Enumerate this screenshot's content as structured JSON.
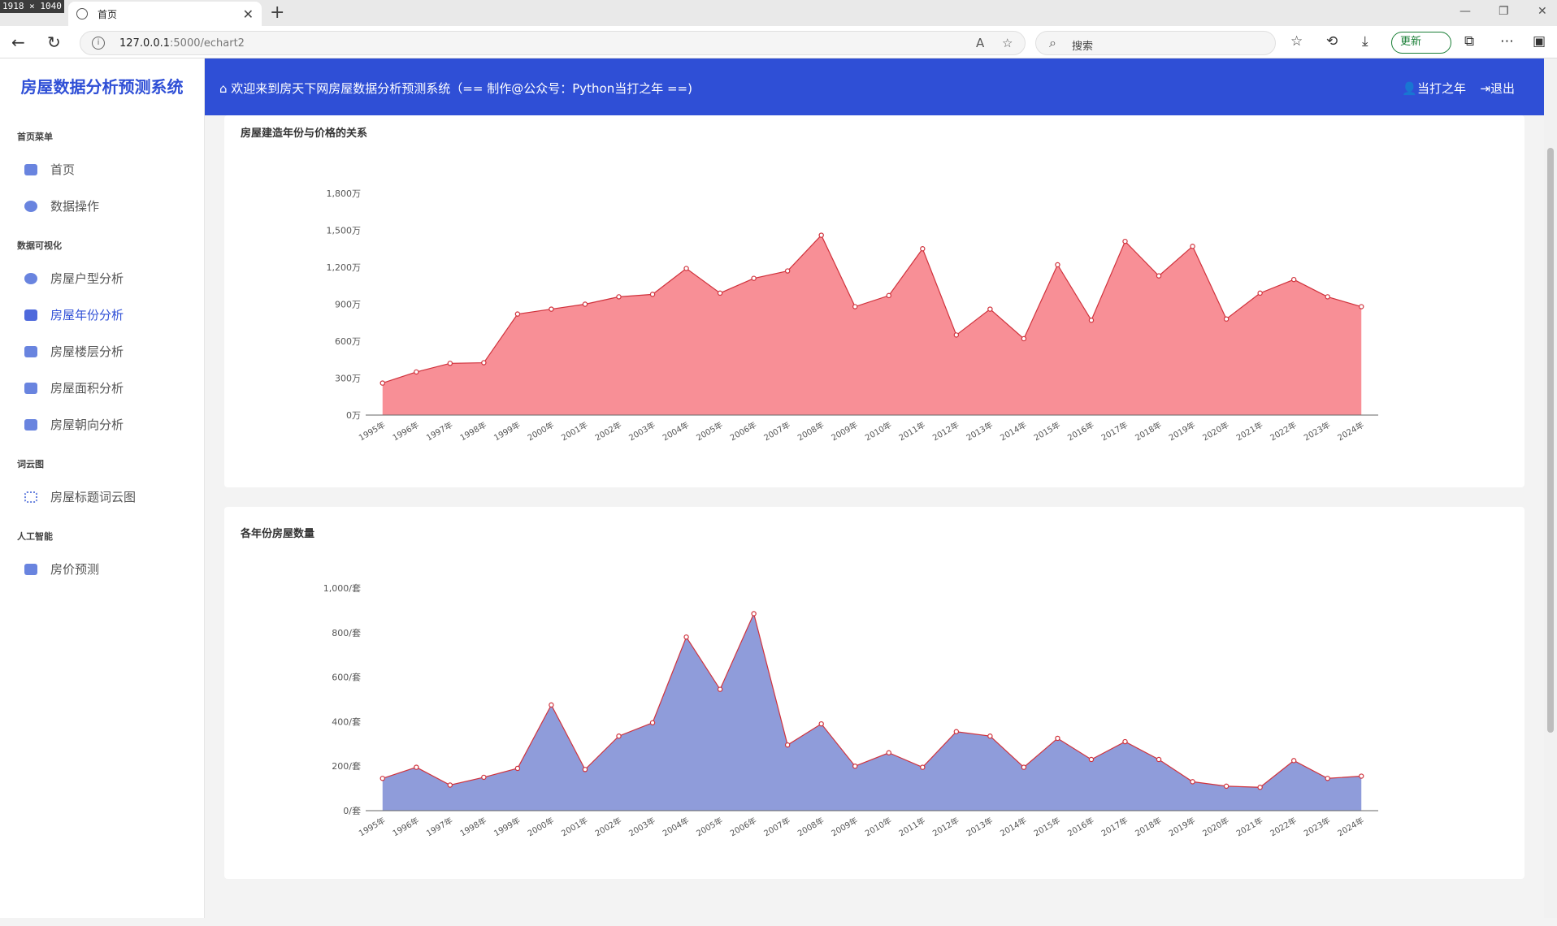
{
  "browser": {
    "overlay_badge": "1918 × 1040",
    "tab_title": "首页",
    "url_host": "127.0.0.1",
    "url_rest": ":5000/echart2",
    "search_placeholder": "搜索",
    "update_label": "更新"
  },
  "app": {
    "brand": "房屋数据分析预测系统",
    "welcome": "欢迎来到房天下网房屋数据分析预测系统（== 制作@公众号：Python当打之年 ==)",
    "user": "当打之年",
    "logout": "退出"
  },
  "sidebar": {
    "sections": [
      {
        "title": "首页菜单",
        "items": [
          {
            "label": "首页"
          },
          {
            "label": "数据操作"
          }
        ]
      },
      {
        "title": "数据可视化",
        "items": [
          {
            "label": "房屋户型分析"
          },
          {
            "label": "房屋年份分析",
            "active": true
          },
          {
            "label": "房屋楼层分析"
          },
          {
            "label": "房屋面积分析"
          },
          {
            "label": "房屋朝向分析"
          }
        ]
      },
      {
        "title": "词云图",
        "items": [
          {
            "label": "房屋标题词云图"
          }
        ]
      },
      {
        "title": "人工智能",
        "items": [
          {
            "label": "房价预测"
          }
        ]
      }
    ]
  },
  "chart_data": [
    {
      "type": "area",
      "title": "房屋建造年份与价格的关系",
      "categories": [
        "1995年",
        "1996年",
        "1997年",
        "1998年",
        "1999年",
        "2000年",
        "2001年",
        "2002年",
        "2003年",
        "2004年",
        "2005年",
        "2006年",
        "2007年",
        "2008年",
        "2009年",
        "2010年",
        "2011年",
        "2012年",
        "2013年",
        "2014年",
        "2015年",
        "2016年",
        "2017年",
        "2018年",
        "2019年",
        "2020年",
        "2021年",
        "2022年",
        "2023年",
        "2024年"
      ],
      "values": [
        260,
        350,
        420,
        425,
        820,
        860,
        900,
        960,
        980,
        1190,
        990,
        1110,
        1170,
        1460,
        880,
        970,
        1350,
        650,
        860,
        620,
        1220,
        770,
        1410,
        1130,
        1370,
        780,
        990,
        1100,
        960,
        880
      ],
      "ylim": [
        0,
        1800
      ],
      "yticks": [
        0,
        300,
        600,
        900,
        1200,
        1500,
        1800
      ],
      "ytick_labels": [
        "0万",
        "300万",
        "600万",
        "900万",
        "1,200万",
        "1,500万",
        "1,800万"
      ],
      "fill_color": "#f88f96",
      "line_color": "#d0323c",
      "grid": false
    },
    {
      "type": "area",
      "title": "各年份房屋数量",
      "categories": [
        "1995年",
        "1996年",
        "1997年",
        "1998年",
        "1999年",
        "2000年",
        "2001年",
        "2002年",
        "2003年",
        "2004年",
        "2005年",
        "2006年",
        "2007年",
        "2008年",
        "2009年",
        "2010年",
        "2011年",
        "2012年",
        "2013年",
        "2014年",
        "2015年",
        "2016年",
        "2017年",
        "2018年",
        "2019年",
        "2020年",
        "2021年",
        "2022年",
        "2023年",
        "2024年"
      ],
      "values": [
        145,
        195,
        115,
        150,
        190,
        475,
        185,
        335,
        395,
        780,
        545,
        885,
        295,
        390,
        200,
        260,
        195,
        355,
        335,
        195,
        325,
        230,
        310,
        230,
        130,
        110,
        105,
        225,
        145,
        155
      ],
      "ylim": [
        0,
        1000
      ],
      "yticks": [
        0,
        200,
        400,
        600,
        800,
        1000
      ],
      "ytick_labels": [
        "0/套",
        "200/套",
        "400/套",
        "600/套",
        "800/套",
        "1,000/套"
      ],
      "fill_color": "#8f9cda",
      "line_color": "#d0323c",
      "grid": false
    }
  ]
}
